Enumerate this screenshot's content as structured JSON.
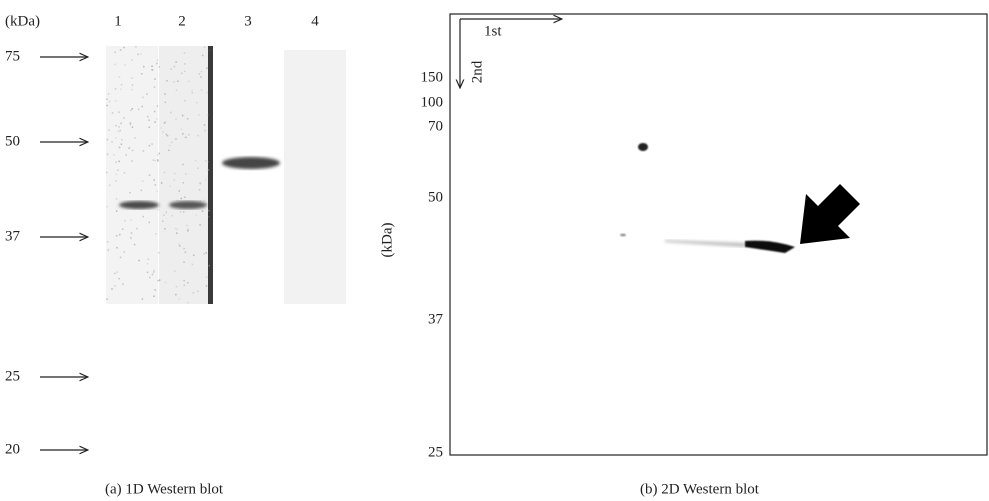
{
  "panel_a": {
    "unit_label": "(kDa)",
    "lanes": [
      "1",
      "2",
      "3",
      "4"
    ],
    "markers": [
      "75",
      "50",
      "37",
      "25",
      "20"
    ],
    "caption": "(a)  1D Western blot"
  },
  "panel_b": {
    "first_dimension": "1st",
    "second_dimension": "2nd",
    "unit_label": "(kDa)",
    "markers": [
      "150",
      "100",
      "70",
      "50",
      "37",
      "25"
    ],
    "caption": "(b)  2D Western blot"
  }
}
